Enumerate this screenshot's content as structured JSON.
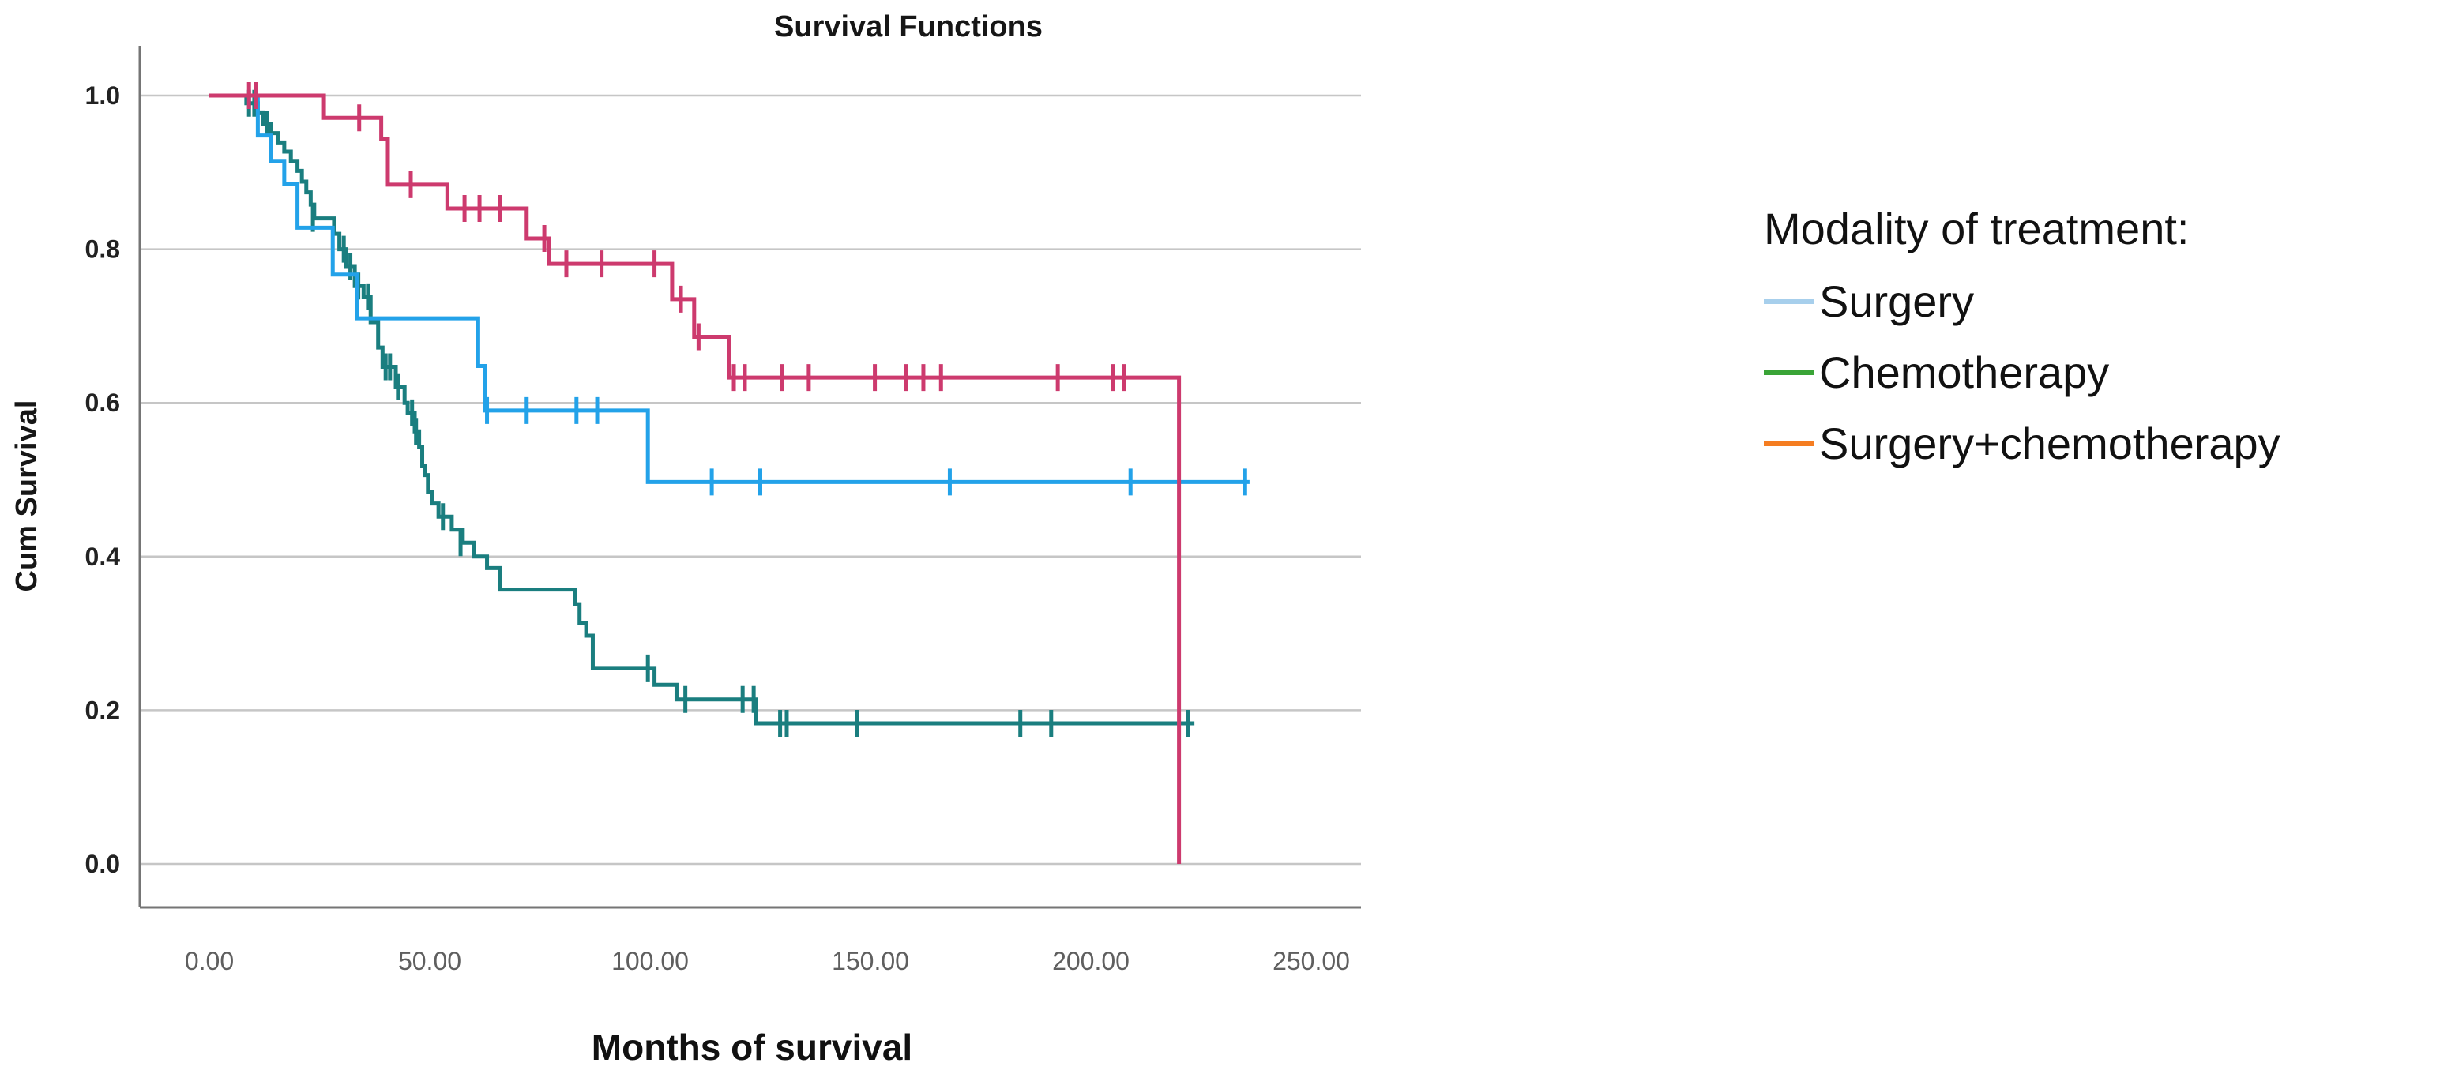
{
  "figure": {
    "background": "#ffffff",
    "gridline_color": "#c6c6c6",
    "axis_color": "#757575"
  },
  "chart_data": {
    "type": "line",
    "subtype": "kaplan-meier-step-curves",
    "title": "Survival Functions",
    "xlabel": "Months of survival",
    "ylabel": "Cum Survival",
    "xlim": [
      -15,
      262
    ],
    "ylim": [
      -0.055,
      1.05
    ],
    "grid": "horizontal",
    "legend_position": "right-of-plot",
    "xticks": [
      {
        "value": 0,
        "label": "0.00"
      },
      {
        "value": 50,
        "label": "50.00"
      },
      {
        "value": 100,
        "label": "100.00"
      },
      {
        "value": 150,
        "label": "150.00"
      },
      {
        "value": 200,
        "label": "200.00"
      },
      {
        "value": 250,
        "label": "250.00"
      }
    ],
    "yticks": [
      {
        "value": 1.0,
        "label": "1.0"
      },
      {
        "value": 0.8,
        "label": "0.8"
      },
      {
        "value": 0.6,
        "label": "0.6"
      },
      {
        "value": 0.4,
        "label": "0.4"
      },
      {
        "value": 0.2,
        "label": "0.2"
      },
      {
        "value": 0.0,
        "label": "0.0"
      }
    ],
    "series": [
      {
        "name": "Surgery",
        "plot_color": "#23a2e9",
        "legend_color": "#a7cfec",
        "end_time": 236,
        "steps": [
          [
            0,
            1.0
          ],
          [
            11,
            0.948
          ],
          [
            14,
            0.915
          ],
          [
            17,
            0.885
          ],
          [
            20,
            0.828
          ],
          [
            28,
            0.767
          ],
          [
            33.5,
            0.71
          ],
          [
            61,
            0.648
          ],
          [
            62.5,
            0.59
          ],
          [
            99.5,
            0.497
          ]
        ],
        "censors": [
          [
            63,
            0.59
          ],
          [
            72,
            0.59
          ],
          [
            83.3,
            0.59
          ],
          [
            88,
            0.59
          ],
          [
            114,
            0.497
          ],
          [
            125,
            0.497
          ],
          [
            168,
            0.497
          ],
          [
            209,
            0.497
          ],
          [
            235,
            0.497
          ]
        ]
      },
      {
        "name": "Chemotherapy",
        "plot_color": "#1a7e7f",
        "legend_color": "#3aa437",
        "end_time": 223.5,
        "steps": [
          [
            0,
            1.0
          ],
          [
            8.4,
            0.99
          ],
          [
            11,
            0.978
          ],
          [
            12.2,
            0.963
          ],
          [
            14,
            0.951
          ],
          [
            15.5,
            0.939
          ],
          [
            17,
            0.927
          ],
          [
            18.5,
            0.915
          ],
          [
            20,
            0.902
          ],
          [
            21,
            0.888
          ],
          [
            22,
            0.874
          ],
          [
            23,
            0.858
          ],
          [
            23.8,
            0.84
          ],
          [
            28.3,
            0.82
          ],
          [
            29.5,
            0.8
          ],
          [
            31,
            0.778
          ],
          [
            33,
            0.752
          ],
          [
            35,
            0.738
          ],
          [
            36.6,
            0.705
          ],
          [
            38.3,
            0.672
          ],
          [
            39.3,
            0.647
          ],
          [
            42.3,
            0.621
          ],
          [
            44.3,
            0.6
          ],
          [
            45,
            0.587
          ],
          [
            46.6,
            0.563
          ],
          [
            47.6,
            0.543
          ],
          [
            48.3,
            0.518
          ],
          [
            49,
            0.506
          ],
          [
            49.6,
            0.484
          ],
          [
            50.6,
            0.469
          ],
          [
            52,
            0.452
          ],
          [
            55,
            0.435
          ],
          [
            57.5,
            0.418
          ],
          [
            60,
            0.4
          ],
          [
            63,
            0.385
          ],
          [
            66,
            0.357
          ],
          [
            83,
            0.338
          ],
          [
            84,
            0.314
          ],
          [
            85.5,
            0.297
          ],
          [
            87,
            0.255
          ],
          [
            101,
            0.233
          ],
          [
            106,
            0.214
          ],
          [
            124,
            0.183
          ]
        ],
        "censors": [
          [
            9,
            0.99
          ],
          [
            10.2,
            0.99
          ],
          [
            13,
            0.963
          ],
          [
            23.5,
            0.84
          ],
          [
            30.5,
            0.8
          ],
          [
            32,
            0.778
          ],
          [
            33.8,
            0.752
          ],
          [
            36,
            0.738
          ],
          [
            40,
            0.647
          ],
          [
            41,
            0.647
          ],
          [
            42.8,
            0.621
          ],
          [
            46,
            0.587
          ],
          [
            46.9,
            0.563
          ],
          [
            53,
            0.452
          ],
          [
            57,
            0.418
          ],
          [
            99.5,
            0.255
          ],
          [
            108,
            0.214
          ],
          [
            121,
            0.214
          ],
          [
            123.5,
            0.214
          ],
          [
            129.5,
            0.183
          ],
          [
            131,
            0.183
          ],
          [
            147,
            0.183
          ],
          [
            184,
            0.183
          ],
          [
            191,
            0.183
          ],
          [
            222,
            0.183
          ]
        ]
      },
      {
        "name": "Surgery+chemotherapy",
        "plot_color": "#cd3a6e",
        "legend_color": "#f57d21",
        "end_time": 220,
        "steps": [
          [
            0,
            1.0
          ],
          [
            26,
            0.971
          ],
          [
            39,
            0.943
          ],
          [
            40.5,
            0.884
          ],
          [
            54,
            0.853
          ],
          [
            72,
            0.814
          ],
          [
            77,
            0.781
          ],
          [
            105,
            0.735
          ],
          [
            110,
            0.686
          ],
          [
            118,
            0.633
          ],
          [
            220,
            0.0
          ]
        ],
        "censors": [
          [
            9,
            1.0
          ],
          [
            10.5,
            1.0
          ],
          [
            34,
            0.971
          ],
          [
            45.7,
            0.884
          ],
          [
            57.9,
            0.853
          ],
          [
            61.3,
            0.853
          ],
          [
            66,
            0.853
          ],
          [
            76,
            0.814
          ],
          [
            81,
            0.781
          ],
          [
            89,
            0.781
          ],
          [
            101,
            0.781
          ],
          [
            107,
            0.735
          ],
          [
            111,
            0.686
          ],
          [
            119,
            0.633
          ],
          [
            121.5,
            0.633
          ],
          [
            130,
            0.633
          ],
          [
            136,
            0.633
          ],
          [
            151,
            0.633
          ],
          [
            158,
            0.633
          ],
          [
            162,
            0.633
          ],
          [
            166,
            0.633
          ],
          [
            192.5,
            0.633
          ],
          [
            205,
            0.633
          ],
          [
            207.5,
            0.633
          ]
        ]
      }
    ]
  },
  "legend": {
    "title": "Modality of treatment:",
    "items": [
      {
        "label": "Surgery",
        "color": "#a7cfec"
      },
      {
        "label": "Chemotherapy",
        "color": "#3aa437"
      },
      {
        "label": "Surgery+chemotherapy",
        "color": "#f57d21"
      }
    ]
  }
}
